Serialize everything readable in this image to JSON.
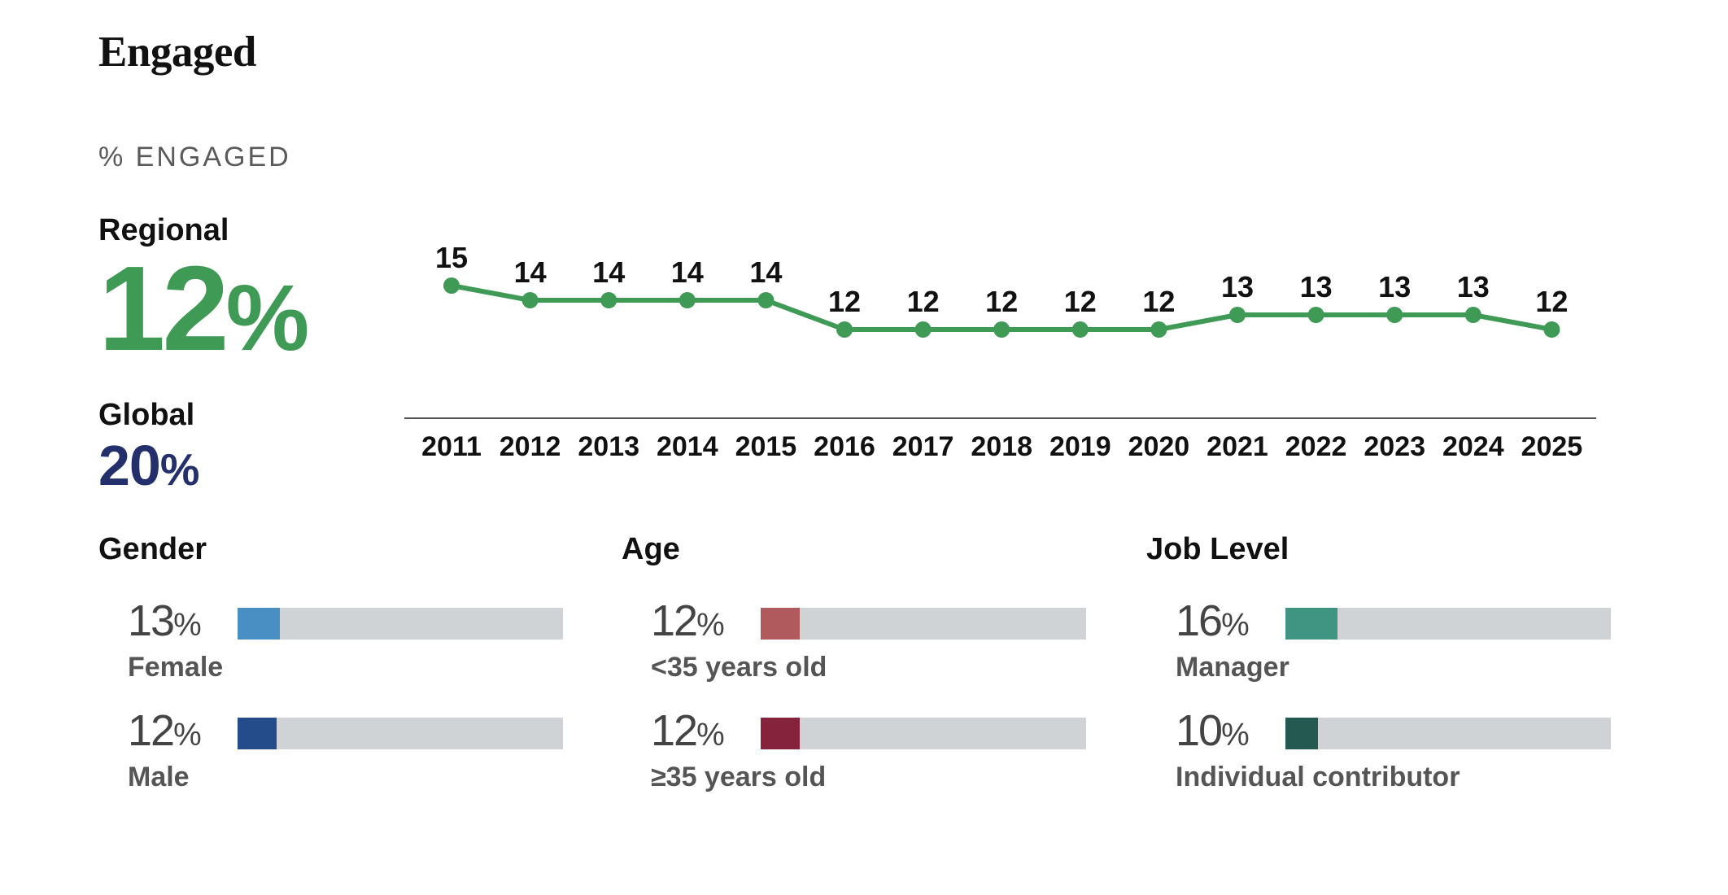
{
  "title": "Engaged",
  "subtitle": "% ENGAGED",
  "regional": {
    "label": "Regional",
    "value": "12",
    "pct": "%"
  },
  "global": {
    "label": "Global",
    "value": "20",
    "pct": "%"
  },
  "chart_data": [
    {
      "type": "line",
      "x": [
        "2011",
        "2012",
        "2013",
        "2014",
        "2015",
        "2016",
        "2017",
        "2018",
        "2019",
        "2020",
        "2021",
        "2022",
        "2023",
        "2024",
        "2025"
      ],
      "series": [
        {
          "values": [
            15,
            14,
            14,
            14,
            14,
            12,
            12,
            12,
            12,
            12,
            13,
            13,
            13,
            13,
            12
          ],
          "color": "#3e9a55"
        }
      ],
      "grid": false
    },
    {
      "type": "bar",
      "group": "Gender",
      "categories": [
        "Female",
        "Male"
      ],
      "values": [
        13,
        12
      ],
      "colors": [
        "#4a8fc4",
        "#244c8a"
      ],
      "ylim": [
        0,
        100
      ]
    },
    {
      "type": "bar",
      "group": "Age",
      "categories": [
        "<35 years old",
        "≥35 years old"
      ],
      "values": [
        12,
        12
      ],
      "colors": [
        "#b05a5e",
        "#85223c"
      ],
      "ylim": [
        0,
        100
      ]
    },
    {
      "type": "bar",
      "group": "Job Level",
      "categories": [
        "Manager",
        "Individual contributor"
      ],
      "values": [
        16,
        10
      ],
      "colors": [
        "#3f9482",
        "#235950"
      ],
      "ylim": [
        0,
        100
      ]
    }
  ],
  "sections": {
    "gender": {
      "title": "Gender",
      "items": [
        {
          "value": "13",
          "pct": "%",
          "label": "Female"
        },
        {
          "value": "12",
          "pct": "%",
          "label": "Male"
        }
      ]
    },
    "age": {
      "title": "Age",
      "items": [
        {
          "value": "12",
          "pct": "%",
          "label": "<35 years old"
        },
        {
          "value": "12",
          "pct": "%",
          "label": "≥35 years old"
        }
      ]
    },
    "job": {
      "title": "Job Level",
      "items": [
        {
          "value": "16",
          "pct": "%",
          "label": "Manager"
        },
        {
          "value": "10",
          "pct": "%",
          "label": "Individual contributor"
        }
      ]
    }
  }
}
